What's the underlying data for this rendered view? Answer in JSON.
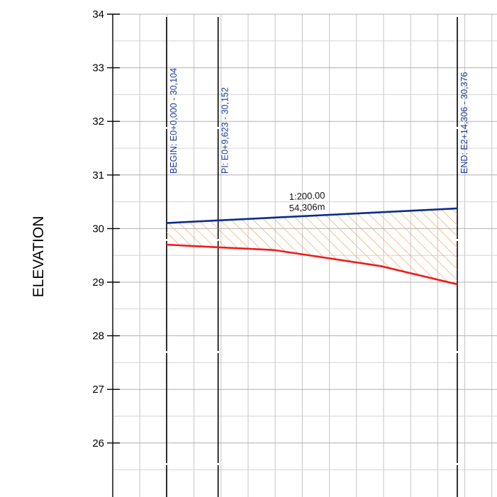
{
  "chart_data": {
    "type": "line",
    "title": "",
    "xlabel": "",
    "ylabel": "ELEVATION",
    "ylim": [
      25.2,
      34
    ],
    "xlim": [
      -12,
      66.5
    ],
    "y_ticks": [
      {
        "value": 34,
        "label": "34"
      },
      {
        "value": 33,
        "label": "33"
      },
      {
        "value": 32,
        "label": "32"
      },
      {
        "value": 31,
        "label": "31"
      },
      {
        "value": 30,
        "label": "30"
      },
      {
        "value": 29,
        "label": "29"
      },
      {
        "value": 28,
        "label": "28"
      },
      {
        "value": 27,
        "label": "27"
      },
      {
        "value": 26,
        "label": "26"
      }
    ],
    "grid": true,
    "series": [
      {
        "key": "design",
        "color": "#0a2d8c",
        "x": [
          0,
          54.306
        ],
        "y": [
          30.104,
          30.376
        ]
      },
      {
        "key": "existing",
        "color": "#ee1c1c",
        "x": [
          0,
          9.623,
          20,
          40,
          54.306
        ],
        "y": [
          29.7,
          29.65,
          29.6,
          29.3,
          28.96
        ]
      }
    ],
    "fill": {
      "color": "#f4a05a",
      "between": [
        "design",
        "existing"
      ]
    },
    "stations": [
      {
        "x": 0,
        "label": "BEGIN:  E0+0,000 - 30,104"
      },
      {
        "x": 9.623,
        "label": "PI:  E0+9,623 - 30,152"
      },
      {
        "x": 54.306,
        "label": "END:  E2+14,306 - 30,376"
      }
    ],
    "grade_annotation": {
      "ratio": "1:200.00",
      "length": "54,306m"
    }
  }
}
